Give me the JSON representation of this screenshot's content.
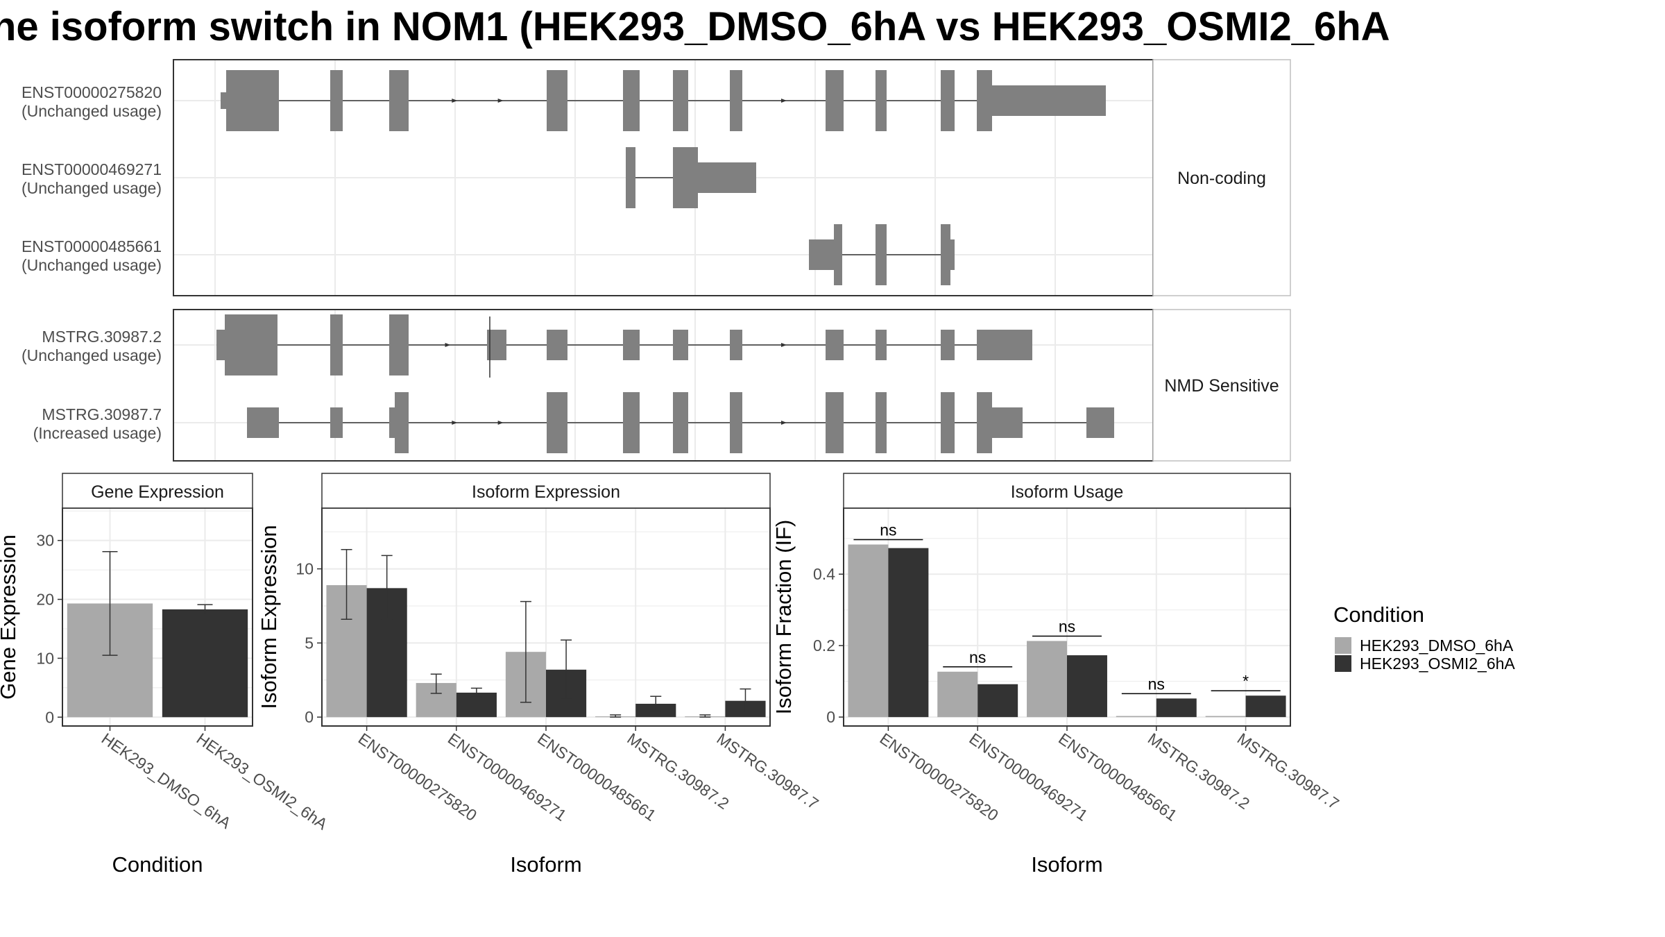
{
  "title": "ne isoform switch in NOM1 (HEK293_DMSO_6hA vs HEK293_OSMI2_6hA",
  "colors": {
    "exon": "#808080",
    "dmso": "#a9a9a9",
    "osmi": "#333333",
    "grid": "#ebebeb",
    "panel_border": "#333333",
    "strip_border": "#bfbfbf"
  },
  "structure": {
    "groups": [
      {
        "label": "Non-coding",
        "transcripts": [
          {
            "id": "ENST00000275820",
            "usage": "(Unchanged usage)"
          },
          {
            "id": "ENST00000469271",
            "usage": "(Unchanged usage)"
          },
          {
            "id": "ENST00000485661",
            "usage": "(Unchanged usage)"
          }
        ]
      },
      {
        "label": "NMD Sensitive",
        "transcripts": [
          {
            "id": "MSTRG.30987.2",
            "usage": "(Unchanged usage)"
          },
          {
            "id": "MSTRG.30987.7",
            "usage": "(Increased usage)"
          }
        ]
      }
    ]
  },
  "legend": {
    "title": "Condition",
    "items": [
      "HEK293_DMSO_6hA",
      "HEK293_OSMI2_6hA"
    ]
  },
  "chart_data": [
    {
      "type": "bar",
      "title": "Gene Expression",
      "xlabel": "Condition",
      "ylabel": "Gene Expression",
      "categories": [
        "HEK293_DMSO_6hA",
        "HEK293_OSMI2_6hA"
      ],
      "values": [
        19.3,
        18.3
      ],
      "errors": [
        [
          10.5,
          28.1
        ],
        [
          17.5,
          19.1
        ]
      ],
      "ylim": [
        -1.5,
        35.5
      ],
      "yticks": [
        0,
        10,
        20,
        30
      ]
    },
    {
      "type": "bar",
      "title": "Isoform Expression",
      "xlabel": "Isoform",
      "ylabel": "Isoform Expression",
      "categories": [
        "ENST00000275820",
        "ENST00000469271",
        "ENST00000485661",
        "MSTRG.30987.2",
        "MSTRG.30987.7"
      ],
      "series": [
        {
          "name": "HEK293_DMSO_6hA",
          "values": [
            8.9,
            2.3,
            4.4,
            0.05,
            0.05
          ],
          "errors": [
            [
              6.6,
              11.3
            ],
            [
              1.6,
              2.9
            ],
            [
              1.0,
              7.8
            ],
            [
              0.0,
              0.15
            ],
            [
              0.0,
              0.15
            ]
          ]
        },
        {
          "name": "HEK293_OSMI2_6hA",
          "values": [
            8.7,
            1.65,
            3.2,
            0.9,
            1.1
          ],
          "errors": [
            [
              6.6,
              10.9
            ],
            [
              1.35,
              1.95
            ],
            [
              1.2,
              5.2
            ],
            [
              0.4,
              1.4
            ],
            [
              0.3,
              1.9
            ]
          ]
        }
      ],
      "ylim": [
        -0.6,
        14.1
      ],
      "yticks": [
        0,
        5,
        10
      ]
    },
    {
      "type": "bar",
      "title": "Isoform Usage",
      "xlabel": "Isoform",
      "ylabel": "Isoform Fraction (IF)",
      "categories": [
        "ENST00000275820",
        "ENST00000469271",
        "ENST00000485661",
        "MSTRG.30987.2",
        "MSTRG.30987.7"
      ],
      "series": [
        {
          "name": "HEK293_DMSO_6hA",
          "values": [
            0.483,
            0.127,
            0.213,
            0.003,
            0.003
          ]
        },
        {
          "name": "HEK293_OSMI2_6hA",
          "values": [
            0.473,
            0.092,
            0.173,
            0.052,
            0.06
          ]
        }
      ],
      "significance": [
        "ns",
        "ns",
        "ns",
        "ns",
        "*"
      ],
      "ylim": [
        -0.025,
        0.585
      ],
      "yticks": [
        0.0,
        0.2,
        0.4
      ]
    }
  ]
}
